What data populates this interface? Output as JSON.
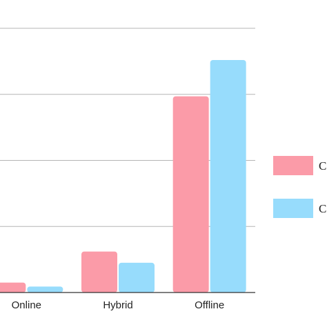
{
  "chart_data": {
    "type": "bar",
    "categories": [
      "Online",
      "Hybrid",
      "Offline"
    ],
    "series": [
      {
        "name": "C",
        "color": "#fb9ba8",
        "values": [
          1.5,
          6.2,
          29.7
        ]
      },
      {
        "name": "C",
        "color": "#97dcfc",
        "values": [
          0.9,
          4.5,
          35.2
        ]
      }
    ],
    "ylim": [
      0,
      40
    ],
    "grid": true,
    "legend_position": "right"
  }
}
